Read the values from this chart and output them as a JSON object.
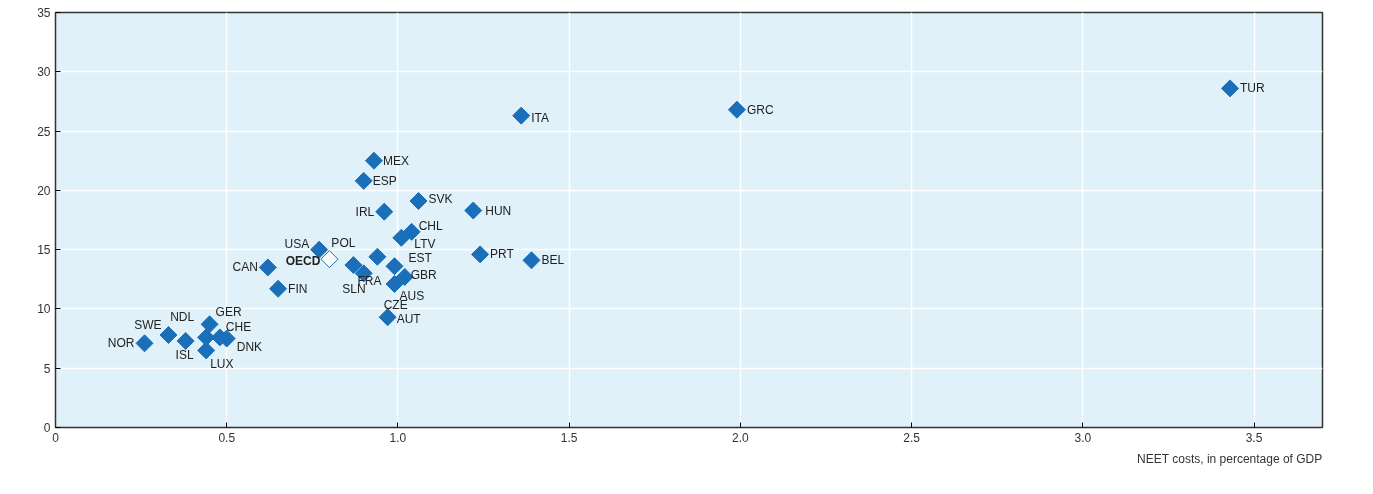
{
  "chart_data": {
    "type": "scatter",
    "xlabel": "NEET costs, in percentage of GDP",
    "xlim": [
      0,
      3.7
    ],
    "ylim": [
      0,
      35
    ],
    "xticks": [
      {
        "value": 0,
        "label": "0"
      },
      0.5,
      {
        "value": 1,
        "label": "1.0"
      },
      1.5,
      {
        "value": 2,
        "label": "2.0"
      },
      2.5,
      {
        "value": 3,
        "label": "3.0"
      },
      3.5
    ],
    "yticks": [
      0,
      5,
      10,
      15,
      20,
      25,
      30,
      35
    ],
    "grid": true,
    "marker": "diamond",
    "series": [
      {
        "color": "#1a6fb8",
        "x": [
          0.26,
          0.33,
          0.38,
          0.44,
          0.45,
          0.48,
          0.5,
          0.44,
          0.62,
          0.65,
          0.77,
          0.94,
          0.87,
          0.9,
          0.99,
          1.02,
          0.99,
          0.97,
          1.04,
          1.01,
          0.96,
          0.9,
          0.93,
          1.06,
          1.22,
          1.24,
          1.39,
          1.36,
          1.99,
          3.43
        ],
        "values": [
          7.1,
          7.8,
          7.3,
          7.6,
          8.7,
          7.6,
          7.5,
          6.5,
          13.5,
          11.7,
          15.0,
          14.4,
          13.7,
          13.0,
          13.6,
          12.7,
          12.1,
          9.3,
          16.5,
          16.0,
          18.2,
          20.8,
          22.5,
          19.1,
          18.3,
          14.6,
          14.1,
          26.3,
          26.8,
          28.6
        ]
      },
      {
        "name": "OECD",
        "color": "#ffffff",
        "x": [
          0.8
        ],
        "values": [
          14.2
        ]
      }
    ],
    "annotations": [
      {
        "text": "NOR",
        "x": 0.26,
        "y": 7.1
      },
      {
        "text": "SWE",
        "x": 0.33,
        "y": 7.8
      },
      {
        "text": "ISL",
        "x": 0.38,
        "y": 7.3
      },
      {
        "text": "NDL",
        "x": 0.44,
        "y": 7.6
      },
      {
        "text": "GER",
        "x": 0.45,
        "y": 8.7
      },
      {
        "text": "CHE",
        "x": 0.48,
        "y": 7.6
      },
      {
        "text": "DNK",
        "x": 0.5,
        "y": 7.5
      },
      {
        "text": "LUX",
        "x": 0.44,
        "y": 6.5
      },
      {
        "text": "CAN",
        "x": 0.62,
        "y": 13.5
      },
      {
        "text": "FIN",
        "x": 0.65,
        "y": 11.7
      },
      {
        "text": "USA",
        "x": 0.77,
        "y": 15.0
      },
      {
        "text": "POL",
        "x": 0.94,
        "y": 14.4
      },
      {
        "text": "FRA",
        "x": 0.87,
        "y": 13.7
      },
      {
        "text": "SLN",
        "x": 0.9,
        "y": 13.0
      },
      {
        "text": "EST",
        "x": 0.99,
        "y": 13.6
      },
      {
        "text": "GBR",
        "x": 1.02,
        "y": 12.7
      },
      {
        "text": "AUS",
        "x": 0.99,
        "y": 12.1
      },
      {
        "text": "CZE",
        "x": 0.97,
        "y": 9.3
      },
      {
        "text": "AUT",
        "x": 0.97,
        "y": 9.3
      },
      {
        "text": "CHL",
        "x": 1.04,
        "y": 16.5
      },
      {
        "text": "LTV",
        "x": 1.01,
        "y": 16.0
      },
      {
        "text": "IRL",
        "x": 0.96,
        "y": 18.2
      },
      {
        "text": "ESP",
        "x": 0.9,
        "y": 20.8
      },
      {
        "text": "MEX",
        "x": 0.93,
        "y": 22.5
      },
      {
        "text": "SVK",
        "x": 1.06,
        "y": 19.1
      },
      {
        "text": "HUN",
        "x": 1.22,
        "y": 18.3
      },
      {
        "text": "PRT",
        "x": 1.24,
        "y": 14.6
      },
      {
        "text": "BEL",
        "x": 1.39,
        "y": 14.1
      },
      {
        "text": "ITA",
        "x": 1.36,
        "y": 26.3
      },
      {
        "text": "GRC",
        "x": 1.99,
        "y": 26.8
      },
      {
        "text": "TUR",
        "x": 3.43,
        "y": 28.6
      }
    ]
  }
}
